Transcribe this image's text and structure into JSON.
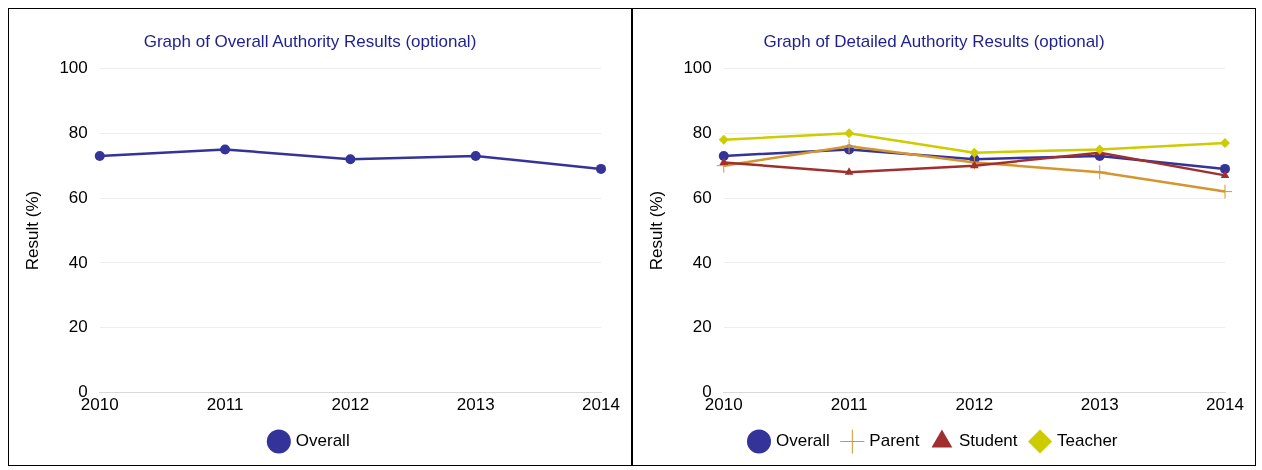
{
  "chart_data": [
    {
      "type": "line",
      "title": "Graph of Overall Authority Results (optional)",
      "ylabel": "Result (%)",
      "categories": [
        "2010",
        "2011",
        "2012",
        "2013",
        "2014"
      ],
      "series": [
        {
          "name": "Overall",
          "color": "#333399",
          "values": [
            73,
            75,
            72,
            73,
            69
          ],
          "marker": "circle"
        }
      ],
      "ylim": [
        0,
        100
      ],
      "yticks": [
        0,
        20,
        40,
        60,
        80,
        100
      ],
      "grid": "y",
      "legend": "bottom",
      "line_style": "solid"
    },
    {
      "type": "line",
      "title": "Graph of Detailed Authority Results (optional)",
      "ylabel": "Result (%)",
      "categories": [
        "2010",
        "2011",
        "2012",
        "2013",
        "2014"
      ],
      "series": [
        {
          "name": "Overall",
          "color": "#333399",
          "values": [
            73,
            75,
            72,
            73,
            69
          ],
          "marker": "circle"
        },
        {
          "name": "Parent",
          "color": "#d4962e",
          "values": [
            70,
            76,
            71,
            68,
            62
          ],
          "marker": "cross"
        },
        {
          "name": "Student",
          "color": "#a03030",
          "values": [
            71,
            68,
            70,
            74,
            67
          ],
          "marker": "triangle"
        },
        {
          "name": "Teacher",
          "color": "#cccc00",
          "values": [
            78,
            80,
            74,
            75,
            77
          ],
          "marker": "diamond"
        }
      ],
      "ylim": [
        0,
        100
      ],
      "yticks": [
        0,
        20,
        40,
        60,
        80,
        100
      ],
      "grid": "y",
      "legend": "bottom",
      "line_style": "solid"
    }
  ]
}
